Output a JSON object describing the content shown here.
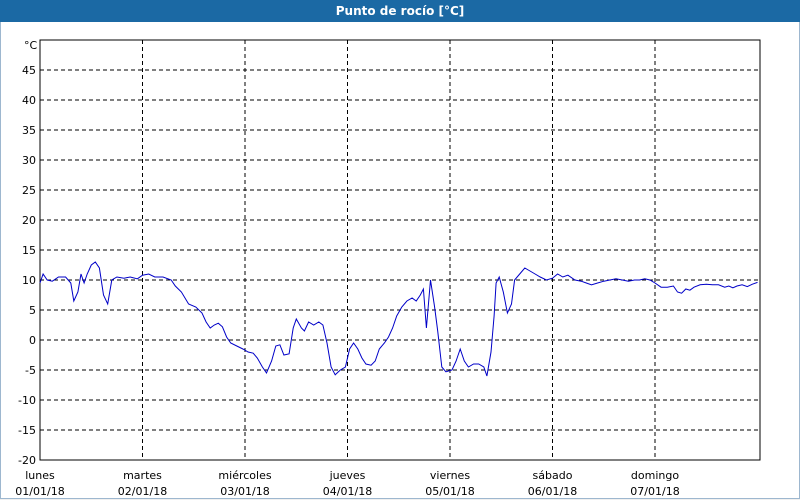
{
  "window": {
    "title": "Punto de rocío [°C]"
  },
  "chart_data": {
    "type": "line",
    "title": "Punto de rocío [°C]",
    "ylabel": "°C",
    "xlabel": "",
    "grid": true,
    "ylim": [
      -20,
      50
    ],
    "yticks": [
      -20,
      -15,
      -10,
      -5,
      0,
      5,
      10,
      15,
      20,
      25,
      30,
      35,
      40,
      45
    ],
    "xlim": [
      0,
      7
    ],
    "xtick_labels": [
      {
        "day": "lunes",
        "date": "01/01/18"
      },
      {
        "day": "martes",
        "date": "02/01/18"
      },
      {
        "day": "miércoles",
        "date": "03/01/18"
      },
      {
        "day": "jueves",
        "date": "04/01/18"
      },
      {
        "day": "viernes",
        "date": "05/01/18"
      },
      {
        "day": "sábado",
        "date": "06/01/18"
      },
      {
        "day": "domingo",
        "date": "07/01/18"
      }
    ],
    "series": [
      {
        "color": "#0000c8",
        "points": [
          [
            0.0,
            9.5
          ],
          [
            0.03,
            11.0
          ],
          [
            0.07,
            10.0
          ],
          [
            0.12,
            9.8
          ],
          [
            0.18,
            10.5
          ],
          [
            0.25,
            10.5
          ],
          [
            0.3,
            9.5
          ],
          [
            0.33,
            6.5
          ],
          [
            0.37,
            8.0
          ],
          [
            0.4,
            11.0
          ],
          [
            0.43,
            9.5
          ],
          [
            0.46,
            11.0
          ],
          [
            0.5,
            12.5
          ],
          [
            0.54,
            13.0
          ],
          [
            0.58,
            12.0
          ],
          [
            0.62,
            7.5
          ],
          [
            0.66,
            6.0
          ],
          [
            0.7,
            10.0
          ],
          [
            0.75,
            10.5
          ],
          [
            0.82,
            10.3
          ],
          [
            0.88,
            10.5
          ],
          [
            0.95,
            10.2
          ],
          [
            1.0,
            10.8
          ],
          [
            1.06,
            11.0
          ],
          [
            1.12,
            10.5
          ],
          [
            1.2,
            10.5
          ],
          [
            1.28,
            10.0
          ],
          [
            1.32,
            9.0
          ],
          [
            1.38,
            8.0
          ],
          [
            1.45,
            6.0
          ],
          [
            1.52,
            5.5
          ],
          [
            1.58,
            4.5
          ],
          [
            1.62,
            3.0
          ],
          [
            1.66,
            2.0
          ],
          [
            1.7,
            2.5
          ],
          [
            1.74,
            2.8
          ],
          [
            1.78,
            2.2
          ],
          [
            1.82,
            0.5
          ],
          [
            1.86,
            -0.5
          ],
          [
            1.92,
            -1.0
          ],
          [
            1.98,
            -1.5
          ],
          [
            2.03,
            -2.0
          ],
          [
            2.08,
            -2.2
          ],
          [
            2.12,
            -3.0
          ],
          [
            2.17,
            -4.5
          ],
          [
            2.21,
            -5.5
          ],
          [
            2.26,
            -3.5
          ],
          [
            2.3,
            -1.0
          ],
          [
            2.34,
            -0.8
          ],
          [
            2.38,
            -2.5
          ],
          [
            2.43,
            -2.3
          ],
          [
            2.47,
            2.0
          ],
          [
            2.5,
            3.5
          ],
          [
            2.55,
            2.0
          ],
          [
            2.58,
            1.5
          ],
          [
            2.62,
            3.0
          ],
          [
            2.67,
            2.5
          ],
          [
            2.72,
            3.0
          ],
          [
            2.76,
            2.5
          ],
          [
            2.8,
            -0.5
          ],
          [
            2.84,
            -4.5
          ],
          [
            2.88,
            -5.8
          ],
          [
            2.93,
            -5.0
          ],
          [
            2.98,
            -4.5
          ],
          [
            3.02,
            -1.5
          ],
          [
            3.06,
            -0.5
          ],
          [
            3.1,
            -1.5
          ],
          [
            3.14,
            -3.0
          ],
          [
            3.18,
            -4.0
          ],
          [
            3.23,
            -4.2
          ],
          [
            3.27,
            -3.5
          ],
          [
            3.31,
            -1.5
          ],
          [
            3.36,
            -0.5
          ],
          [
            3.4,
            0.5
          ],
          [
            3.44,
            2.0
          ],
          [
            3.48,
            4.0
          ],
          [
            3.53,
            5.5
          ],
          [
            3.58,
            6.5
          ],
          [
            3.63,
            7.0
          ],
          [
            3.67,
            6.5
          ],
          [
            3.71,
            7.5
          ],
          [
            3.74,
            8.5
          ],
          [
            3.77,
            2.0
          ],
          [
            3.81,
            10.0
          ],
          [
            3.85,
            5.5
          ],
          [
            3.88,
            1.5
          ],
          [
            3.92,
            -4.5
          ],
          [
            3.96,
            -5.3
          ],
          [
            4.02,
            -5.0
          ],
          [
            4.06,
            -3.5
          ],
          [
            4.1,
            -1.5
          ],
          [
            4.14,
            -3.5
          ],
          [
            4.18,
            -4.5
          ],
          [
            4.23,
            -4.0
          ],
          [
            4.28,
            -4.0
          ],
          [
            4.33,
            -4.5
          ],
          [
            4.36,
            -6.0
          ],
          [
            4.4,
            -2.0
          ],
          [
            4.43,
            4.0
          ],
          [
            4.45,
            9.5
          ],
          [
            4.48,
            10.5
          ],
          [
            4.52,
            8.0
          ],
          [
            4.56,
            4.5
          ],
          [
            4.6,
            6.0
          ],
          [
            4.63,
            10.0
          ],
          [
            4.68,
            11.0
          ],
          [
            4.73,
            12.0
          ],
          [
            4.78,
            11.5
          ],
          [
            4.83,
            11.0
          ],
          [
            4.88,
            10.5
          ],
          [
            4.94,
            10.0
          ],
          [
            5.0,
            10.3
          ],
          [
            5.05,
            11.0
          ],
          [
            5.1,
            10.5
          ],
          [
            5.15,
            10.8
          ],
          [
            5.22,
            10.0
          ],
          [
            5.28,
            9.8
          ],
          [
            5.33,
            9.5
          ],
          [
            5.38,
            9.2
          ],
          [
            5.44,
            9.5
          ],
          [
            5.5,
            9.8
          ],
          [
            5.56,
            10.0
          ],
          [
            5.62,
            10.2
          ],
          [
            5.68,
            10.0
          ],
          [
            5.74,
            9.8
          ],
          [
            5.8,
            10.0
          ],
          [
            5.85,
            10.0
          ],
          [
            5.9,
            10.2
          ],
          [
            5.95,
            10.0
          ],
          [
            6.0,
            9.5
          ],
          [
            6.06,
            8.8
          ],
          [
            6.12,
            8.8
          ],
          [
            6.18,
            9.0
          ],
          [
            6.22,
            8.0
          ],
          [
            6.26,
            7.8
          ],
          [
            6.3,
            8.5
          ],
          [
            6.34,
            8.3
          ],
          [
            6.38,
            8.8
          ],
          [
            6.44,
            9.2
          ],
          [
            6.5,
            9.3
          ],
          [
            6.56,
            9.2
          ],
          [
            6.62,
            9.2
          ],
          [
            6.68,
            8.8
          ],
          [
            6.72,
            9.0
          ],
          [
            6.76,
            8.7
          ],
          [
            6.8,
            9.0
          ],
          [
            6.85,
            9.2
          ],
          [
            6.9,
            8.9
          ],
          [
            6.95,
            9.3
          ],
          [
            7.0,
            9.6
          ]
        ]
      }
    ]
  }
}
